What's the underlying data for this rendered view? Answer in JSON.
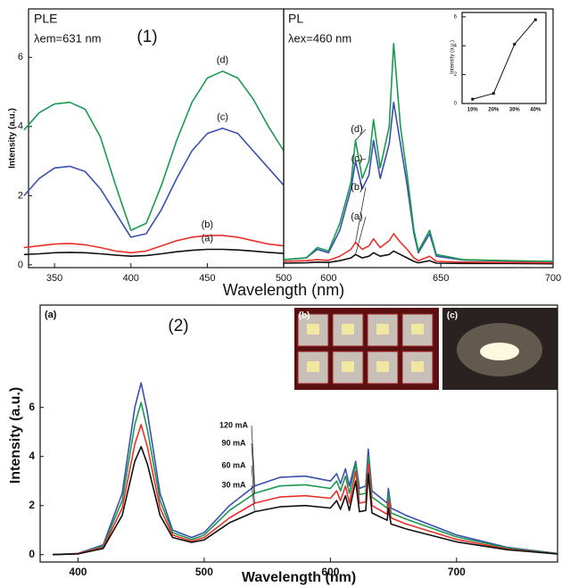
{
  "chart_data": [
    {
      "type": "line",
      "title": "PLE",
      "subtitle": "λem=631 nm",
      "annotation": "(1)",
      "x_label": "Wavelength (nm)",
      "y_label": "Intensity (a.u.)",
      "x": [
        330,
        340,
        350,
        360,
        370,
        380,
        390,
        400,
        410,
        420,
        430,
        440,
        450,
        460,
        470,
        480,
        490,
        500
      ],
      "xlim": [
        333,
        500
      ],
      "xticks": [
        350,
        400,
        450,
        500
      ],
      "ylim": [
        -0.08,
        7.4
      ],
      "yticks": [
        0,
        2,
        4,
        6
      ],
      "series": [
        {
          "name": "(a)",
          "color": "#111111",
          "values": [
            0.3,
            0.32,
            0.35,
            0.36,
            0.35,
            0.32,
            0.28,
            0.25,
            0.27,
            0.32,
            0.38,
            0.42,
            0.45,
            0.45,
            0.43,
            0.4,
            0.36,
            0.33
          ]
        },
        {
          "name": "(b)",
          "color": "#e8302a",
          "values": [
            0.5,
            0.55,
            0.6,
            0.62,
            0.58,
            0.5,
            0.4,
            0.35,
            0.4,
            0.55,
            0.7,
            0.8,
            0.85,
            0.85,
            0.8,
            0.7,
            0.6,
            0.55
          ]
        },
        {
          "name": "(c)",
          "color": "#3a4fb0",
          "values": [
            2.0,
            2.5,
            2.8,
            2.85,
            2.7,
            2.2,
            1.5,
            0.8,
            0.9,
            1.6,
            2.5,
            3.3,
            3.8,
            3.95,
            3.8,
            3.3,
            2.8,
            2.3
          ]
        },
        {
          "name": "(d)",
          "color": "#1a9a50",
          "values": [
            3.9,
            4.4,
            4.65,
            4.7,
            4.5,
            3.7,
            2.3,
            1.0,
            1.2,
            2.3,
            3.6,
            4.7,
            5.4,
            5.6,
            5.4,
            4.8,
            4.0,
            3.3
          ]
        }
      ]
    },
    {
      "type": "line",
      "title": "PL",
      "subtitle": "λex=460 nm",
      "x": [
        580,
        590,
        595,
        600,
        605,
        610,
        612,
        615,
        618,
        620,
        623,
        627,
        629,
        632,
        635,
        638,
        640,
        645,
        648,
        660,
        680,
        700
      ],
      "xlim": [
        580,
        700
      ],
      "xticks": [
        600,
        650,
        700
      ],
      "ylim": [
        -0.08,
        7.4
      ],
      "series": [
        {
          "name": "(a)",
          "color": "#111111",
          "values": [
            0.05,
            0.06,
            0.08,
            0.07,
            0.12,
            0.2,
            0.3,
            0.2,
            0.25,
            0.35,
            0.25,
            0.3,
            0.4,
            0.3,
            0.2,
            0.1,
            0.06,
            0.12,
            0.05,
            0.04,
            0.04,
            0.03
          ]
        },
        {
          "name": "(b)",
          "color": "#e8302a",
          "values": [
            0.1,
            0.12,
            0.15,
            0.13,
            0.25,
            0.45,
            0.65,
            0.45,
            0.55,
            0.75,
            0.5,
            0.7,
            0.9,
            0.65,
            0.45,
            0.2,
            0.12,
            0.25,
            0.1,
            0.08,
            0.07,
            0.06
          ]
        },
        {
          "name": "(c)",
          "color": "#3a4fb0",
          "values": [
            0.15,
            0.2,
            0.45,
            0.35,
            1.0,
            2.2,
            3.0,
            2.2,
            2.6,
            3.6,
            2.5,
            3.5,
            4.7,
            3.5,
            2.3,
            0.9,
            0.35,
            0.9,
            0.25,
            0.14,
            0.11,
            0.1
          ]
        },
        {
          "name": "(d)",
          "color": "#1a9a50",
          "values": [
            0.15,
            0.2,
            0.5,
            0.4,
            1.2,
            2.4,
            3.6,
            2.5,
            3.0,
            4.2,
            2.8,
            4.0,
            6.4,
            4.0,
            2.6,
            1.0,
            0.4,
            1.0,
            0.3,
            0.15,
            0.12,
            0.1
          ]
        }
      ]
    },
    {
      "type": "line",
      "y_label": "Intensity (a.u.)",
      "categories": [
        "10%",
        "20%",
        "30%",
        "40%"
      ],
      "values": [
        0.3,
        0.7,
        4.1,
        5.8
      ],
      "color": "#111111",
      "ylim": [
        0,
        6.3
      ],
      "yticks": [
        0,
        2,
        4,
        6
      ]
    },
    {
      "type": "line",
      "panel_label": "(a)",
      "annotation": "(2)",
      "photo_labels": [
        "(b)",
        "(c)"
      ],
      "x_label": "Wavelength (nm)",
      "y_label": "Intensity (a.u.)",
      "x": [
        380,
        400,
        420,
        435,
        445,
        450,
        455,
        465,
        475,
        490,
        500,
        520,
        540,
        560,
        580,
        600,
        605,
        608,
        612,
        615,
        620,
        623,
        628,
        630,
        633,
        645,
        646,
        648,
        660,
        700,
        740,
        780
      ],
      "xlim": [
        370,
        780
      ],
      "xticks": [
        400,
        500,
        600,
        700
      ],
      "ylim": [
        -0.3,
        10.17
      ],
      "yticks": [
        0,
        2,
        4,
        6
      ],
      "series": [
        {
          "name": "120 mA",
          "color": "#3a4fb0",
          "values": [
            0,
            0.05,
            0.4,
            2.5,
            6.0,
            7.0,
            5.8,
            2.5,
            1.0,
            0.7,
            0.9,
            2.0,
            2.8,
            3.15,
            3.2,
            3.0,
            3.3,
            2.9,
            3.5,
            2.8,
            3.8,
            2.7,
            2.8,
            4.3,
            2.6,
            2.1,
            2.7,
            1.9,
            1.6,
            0.8,
            0.3,
            0.05
          ]
        },
        {
          "name": "90 mA",
          "color": "#1a9a50",
          "values": [
            0,
            0.04,
            0.35,
            2.2,
            5.3,
            6.2,
            5.1,
            2.2,
            0.9,
            0.62,
            0.8,
            1.8,
            2.5,
            2.8,
            2.85,
            2.7,
            3.0,
            2.6,
            3.2,
            2.5,
            3.7,
            2.45,
            2.5,
            4.0,
            2.35,
            1.9,
            2.5,
            1.7,
            1.45,
            0.72,
            0.27,
            0.04
          ]
        },
        {
          "name": "60 mA",
          "color": "#e8302a",
          "values": [
            0,
            0.04,
            0.3,
            1.9,
            4.5,
            5.3,
            4.4,
            1.9,
            0.8,
            0.55,
            0.7,
            1.5,
            2.1,
            2.35,
            2.4,
            2.3,
            2.6,
            2.2,
            2.8,
            2.1,
            3.4,
            2.1,
            2.15,
            3.7,
            2.0,
            1.65,
            2.2,
            1.5,
            1.25,
            0.62,
            0.23,
            0.03
          ]
        },
        {
          "name": "30 mA",
          "color": "#111111",
          "values": [
            0,
            0.03,
            0.25,
            1.6,
            3.8,
            4.4,
            3.7,
            1.6,
            0.7,
            0.5,
            0.6,
            1.3,
            1.75,
            1.95,
            2.0,
            1.9,
            2.2,
            1.85,
            2.4,
            1.8,
            3.0,
            1.75,
            1.8,
            3.3,
            1.7,
            1.4,
            1.9,
            1.25,
            1.05,
            0.52,
            0.2,
            0.03
          ]
        }
      ]
    }
  ]
}
